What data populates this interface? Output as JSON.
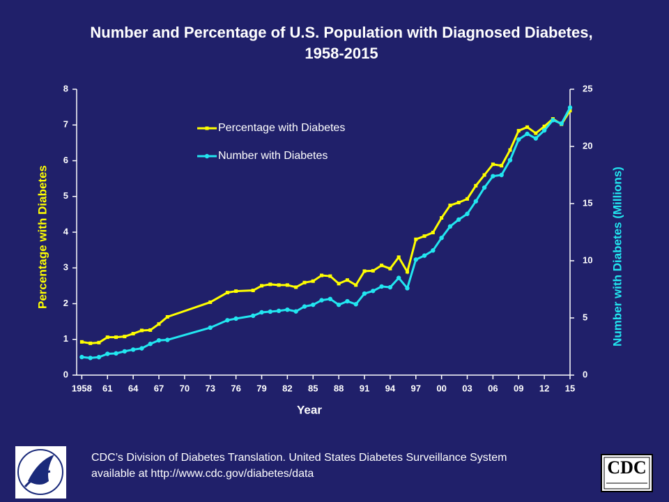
{
  "chart_data": {
    "type": "line",
    "title": [
      "Number and Percentage of U.S. Population with Diagnosed Diabetes,",
      "1958-2015"
    ],
    "xlabel": "Year",
    "ylabel": "Percentage with Diabetes",
    "y2label": "Number with Diabetes (Millions)",
    "x": [
      1958,
      1959,
      1960,
      1961,
      1962,
      1963,
      1964,
      1965,
      1966,
      1967,
      1968,
      1973,
      1975,
      1976,
      1978,
      1979,
      1980,
      1981,
      1982,
      1983,
      1984,
      1985,
      1986,
      1987,
      1988,
      1989,
      1990,
      1991,
      1992,
      1993,
      1994,
      1995,
      1996,
      1997,
      1998,
      1999,
      2000,
      2001,
      2002,
      2003,
      2004,
      2005,
      2006,
      2007,
      2008,
      2009,
      2010,
      2011,
      2012,
      2013,
      2014,
      2015
    ],
    "series": [
      {
        "name": "Percentage with Diabetes",
        "color": "#ffff00",
        "marker": "square",
        "axis": "y",
        "values": [
          0.93,
          0.89,
          0.91,
          1.06,
          1.06,
          1.08,
          1.16,
          1.25,
          1.26,
          1.43,
          1.63,
          2.04,
          2.31,
          2.35,
          2.37,
          2.5,
          2.54,
          2.52,
          2.52,
          2.46,
          2.59,
          2.63,
          2.79,
          2.77,
          2.56,
          2.66,
          2.52,
          2.91,
          2.92,
          3.07,
          2.98,
          3.3,
          2.89,
          3.8,
          3.89,
          3.99,
          4.4,
          4.75,
          4.83,
          4.93,
          5.3,
          5.6,
          5.9,
          5.86,
          6.3,
          6.84,
          6.94,
          6.77,
          6.96,
          7.17,
          7.02,
          7.4
        ]
      },
      {
        "name": "Number with Diabetes",
        "color": "#22e6f0",
        "marker": "circle",
        "axis": "y2",
        "values": [
          1.58,
          1.5,
          1.57,
          1.86,
          1.9,
          2.08,
          2.23,
          2.34,
          2.73,
          3.04,
          3.08,
          4.15,
          4.8,
          4.94,
          5.19,
          5.49,
          5.55,
          5.62,
          5.72,
          5.57,
          6.0,
          6.15,
          6.55,
          6.66,
          6.15,
          6.46,
          6.2,
          7.13,
          7.36,
          7.75,
          7.68,
          8.5,
          7.6,
          10.1,
          10.45,
          10.9,
          12.0,
          13.0,
          13.6,
          14.1,
          15.2,
          16.4,
          17.4,
          17.5,
          18.8,
          20.6,
          21.1,
          20.7,
          21.4,
          22.3,
          22.0,
          23.4
        ]
      }
    ],
    "xlim": [
      1957.4,
      2015
    ],
    "xticks": [
      {
        "value": 1958,
        "label": "1958"
      },
      {
        "value": 1961,
        "label": "61"
      },
      {
        "value": 1964,
        "label": "64"
      },
      {
        "value": 1967,
        "label": "67"
      },
      {
        "value": 1970,
        "label": "70"
      },
      {
        "value": 1973,
        "label": "73"
      },
      {
        "value": 1976,
        "label": "76"
      },
      {
        "value": 1979,
        "label": "79"
      },
      {
        "value": 1982,
        "label": "82"
      },
      {
        "value": 1985,
        "label": "85"
      },
      {
        "value": 1988,
        "label": "88"
      },
      {
        "value": 1991,
        "label": "91"
      },
      {
        "value": 1994,
        "label": "94"
      },
      {
        "value": 1997,
        "label": "97"
      },
      {
        "value": 2000,
        "label": "00"
      },
      {
        "value": 2003,
        "label": "03"
      },
      {
        "value": 2006,
        "label": "06"
      },
      {
        "value": 2009,
        "label": "09"
      },
      {
        "value": 2012,
        "label": "12"
      },
      {
        "value": 2015,
        "label": "15"
      }
    ],
    "ylim": [
      0,
      8
    ],
    "yticks": [
      0,
      1,
      2,
      3,
      4,
      5,
      6,
      7,
      8
    ],
    "y2lim": [
      0,
      25
    ],
    "y2ticks": [
      0,
      5,
      10,
      15,
      20,
      25
    ],
    "legend": "upper left",
    "grid": false
  },
  "footer": {
    "source": [
      "CDC’s Division of Diabetes Translation. United States Diabetes Surveillance System",
      "available at http://www.cdc.gov/diabetes/data"
    ],
    "logo_text": "CDC"
  }
}
